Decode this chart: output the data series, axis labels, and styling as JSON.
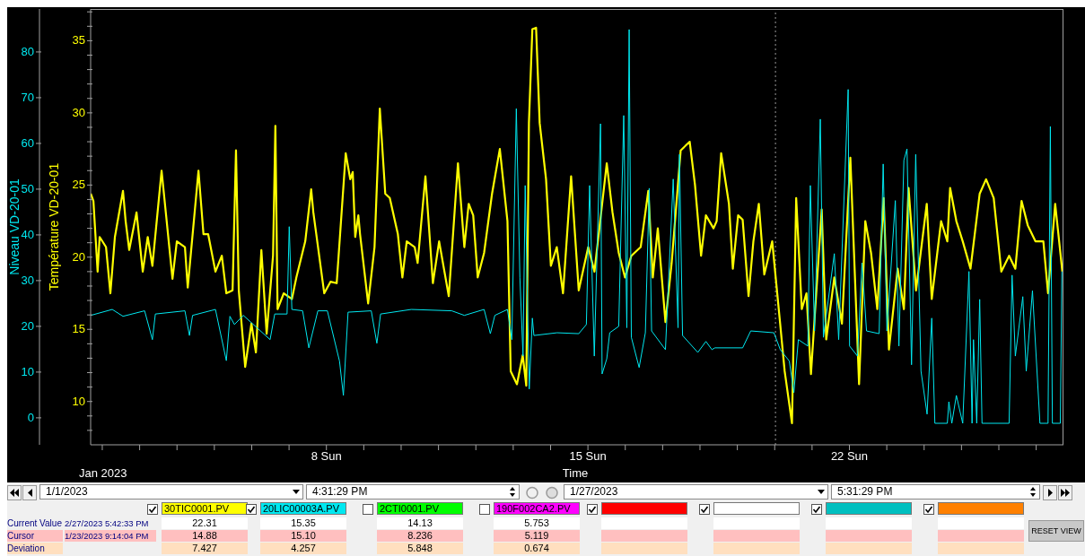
{
  "chart_data": {
    "type": "line",
    "xlabel": "Time",
    "ylabel": "Température VD-20-01",
    "y2label": "Niveau VD-20-01",
    "legend": "bottom",
    "xlim": [
      "2023-01-01T16:31",
      "2023-01-27T17:31"
    ],
    "xticks": [
      {
        "value": "2023-01-02",
        "label": null
      },
      {
        "value": "2023-01-03",
        "label": null
      },
      {
        "value": "2023-01-04",
        "label": null
      },
      {
        "value": "2023-01-05",
        "label": null
      },
      {
        "value": "2023-01-06",
        "label": null
      },
      {
        "value": "2023-01-07",
        "label": null
      },
      {
        "value": "2023-01-08",
        "label": "8 Sun"
      },
      {
        "value": "2023-01-09",
        "label": null
      },
      {
        "value": "2023-01-10",
        "label": null
      },
      {
        "value": "2023-01-11",
        "label": null
      },
      {
        "value": "2023-01-12",
        "label": null
      },
      {
        "value": "2023-01-13",
        "label": null
      },
      {
        "value": "2023-01-14",
        "label": null
      },
      {
        "value": "2023-01-15",
        "label": "15 Sun"
      },
      {
        "value": "2023-01-16",
        "label": null
      },
      {
        "value": "2023-01-17",
        "label": null
      },
      {
        "value": "2023-01-18",
        "label": null
      },
      {
        "value": "2023-01-19",
        "label": null
      },
      {
        "value": "2023-01-20",
        "label": null
      },
      {
        "value": "2023-01-21",
        "label": null
      },
      {
        "value": "2023-01-22",
        "label": "22 Sun"
      },
      {
        "value": "2023-01-23",
        "label": null
      },
      {
        "value": "2023-01-24",
        "label": null
      },
      {
        "value": "2023-01-25",
        "label": null
      },
      {
        "value": "2023-01-26",
        "label": null
      },
      {
        "value": "2023-01-27",
        "label": null
      }
    ],
    "ylim": [
      7,
      37.2
    ],
    "yticks": [
      {
        "value": 8,
        "label": null
      },
      {
        "value": 9,
        "label": null
      },
      10,
      {
        "value": 11,
        "label": null
      },
      {
        "value": 12,
        "label": null
      },
      {
        "value": 13,
        "label": null
      },
      {
        "value": 14,
        "label": null
      },
      15,
      {
        "value": 16,
        "label": null
      },
      {
        "value": 17,
        "label": null
      },
      {
        "value": 18,
        "label": null
      },
      {
        "value": 19,
        "label": null
      },
      20,
      {
        "value": 21,
        "label": null
      },
      {
        "value": 22,
        "label": null
      },
      {
        "value": 23,
        "label": null
      },
      {
        "value": 24,
        "label": null
      },
      25,
      {
        "value": 26,
        "label": null
      },
      {
        "value": 27,
        "label": null
      },
      {
        "value": 28,
        "label": null
      },
      {
        "value": 29,
        "label": null
      },
      30,
      {
        "value": 31,
        "label": null
      },
      {
        "value": 32,
        "label": null
      },
      {
        "value": 33,
        "label": null
      },
      {
        "value": 34,
        "label": null
      },
      35,
      {
        "value": 36,
        "label": null
      },
      {
        "value": 37,
        "label": null
      }
    ],
    "y2lim": [
      -5.9,
      89.4
    ],
    "y2ticks": [
      0,
      10,
      20,
      30,
      40,
      50,
      60,
      70,
      80
    ],
    "ref_lines": [
      {
        "axis": "x",
        "value": "2023-01-20T00:30",
        "label": null,
        "color": "#9a9a9a",
        "line_style": "dotted"
      }
    ],
    "series": [
      {
        "name": "30TIC0001.PV",
        "color": "#ffff00",
        "x": [
          "2023-01-01T16:35",
          "2023-01-01T18:18",
          "2023-01-01T21:00",
          "2023-01-01T22:18",
          "2023-01-02T02:24",
          "2023-01-02T05:12",
          "2023-01-02T08:06",
          "2023-01-02T13:18",
          "2023-01-02T15:00",
          "2023-01-02T17:18",
          "2023-01-02T22:00",
          "2023-01-03T02:00",
          "2023-01-03T05:12",
          "2023-01-03T08:12",
          "2023-01-03T14:06",
          "2023-01-03T17:00",
          "2023-01-03T21:06",
          "2023-01-03T23:54",
          "2023-01-04T05:06",
          "2023-01-04T06:54",
          "2023-01-04T13:48",
          "2023-01-04T17:00",
          "2023-01-04T20:00",
          "2023-01-05T00:42",
          "2023-01-05T04:48",
          "2023-01-05T07:42",
          "2023-01-05T11:42",
          "2023-01-05T13:54",
          "2023-01-05T15:42",
          "2023-01-05T19:48",
          "2023-01-05T23:48",
          "2023-01-06T02:42",
          "2023-01-06T06:12",
          "2023-01-06T09:36",
          "2023-01-06T13:42",
          "2023-01-06T15:12",
          "2023-01-06T16:36",
          "2023-01-06T20:36",
          "2023-01-07T01:48",
          "2023-01-07T04:42",
          "2023-01-07T10:24",
          "2023-01-07T14:12",
          "2023-01-07T15:36",
          "2023-01-07T22:36",
          "2023-01-08T02:36",
          "2023-01-08T06:36",
          "2023-01-08T12:24",
          "2023-01-08T15:18",
          "2023-01-08T16:54",
          "2023-01-08T18:30",
          "2023-01-08T20:30",
          "2023-01-08T21:36",
          "2023-01-09T02:48",
          "2023-01-09T06:54",
          "2023-01-09T10:18",
          "2023-01-09T13:48",
          "2023-01-09T16:42",
          "2023-01-09T21:54",
          "2023-01-10T00:48",
          "2023-01-10T03:36",
          "2023-01-10T08:42",
          "2023-01-10T10:36",
          "2023-01-10T15:36",
          "2023-01-10T20:24",
          "2023-01-11T00:24",
          "2023-01-11T06:36",
          "2023-01-11T12:30",
          "2023-01-11T16:36",
          "2023-01-11T19:24",
          "2023-01-11T22:18",
          "2023-01-12T01:12",
          "2023-01-12T05:18",
          "2023-01-12T10:24",
          "2023-01-12T15:24",
          "2023-01-12T20:18",
          "2023-01-12T22:24",
          "2023-01-13T02:24",
          "2023-01-13T06:06",
          "2023-01-13T08:24",
          "2023-01-13T10:06",
          "2023-01-13T12:18",
          "2023-01-13T14:42",
          "2023-01-13T17:00",
          "2023-01-13T21:06",
          "2023-01-14T00:12",
          "2023-01-14T04:00",
          "2023-01-14T08:00",
          "2023-01-14T13:12",
          "2023-01-14T18:06",
          "2023-01-15T00:12",
          "2023-01-15T04:12",
          "2023-01-15T12:06",
          "2023-01-15T15:48",
          "2023-01-15T19:48",
          "2023-01-15T23:48",
          "2023-01-16T03:54",
          "2023-01-16T09:54",
          "2023-01-16T14:48",
          "2023-01-16T17:42",
          "2023-01-16T20:54",
          "2023-01-17T01:48",
          "2023-01-17T05:48",
          "2023-01-17T11:36",
          "2023-01-17T17:24",
          "2023-01-17T20:48",
          "2023-01-18T00:42",
          "2023-01-18T03:48",
          "2023-01-18T08:42",
          "2023-01-18T10:42",
          "2023-01-18T13:36",
          "2023-01-18T18:36",
          "2023-01-18T21:06",
          "2023-01-19T00:30",
          "2023-01-19T03:24",
          "2023-01-19T07:12",
          "2023-01-19T10:18",
          "2023-01-19T13:48",
          "2023-01-19T17:18",
          "2023-01-19T22:24",
          "2023-01-20T03:30",
          "2023-01-20T06:24",
          "2023-01-20T11:06",
          "2023-01-20T13:48",
          "2023-01-20T17:24",
          "2023-01-20T20:24",
          "2023-01-20T23:18",
          "2023-01-21T06:12",
          "2023-01-21T09:06",
          "2023-01-21T14:18",
          "2023-01-21T19:12",
          "2023-01-22T00:36",
          "2023-01-22T06:12",
          "2023-01-22T10:12",
          "2023-01-22T13:54",
          "2023-01-22T17:54",
          "2023-01-22T22:00",
          "2023-01-23T01:24",
          "2023-01-23T07:00",
          "2023-01-23T11:00",
          "2023-01-23T14:00",
          "2023-01-23T18:48",
          "2023-01-24T01:42",
          "2023-01-24T04:54",
          "2023-01-24T10:54",
          "2023-01-24T14:54",
          "2023-01-24T16:42",
          "2023-01-24T20:42",
          "2023-01-25T00:48",
          "2023-01-25T05:48",
          "2023-01-25T11:42",
          "2023-01-25T15:48",
          "2023-01-25T20:42",
          "2023-01-26T01:36",
          "2023-01-26T06:36",
          "2023-01-26T10:36",
          "2023-01-26T14:36",
          "2023-01-26T18:36",
          "2023-01-26T23:30",
          "2023-01-27T04:36",
          "2023-01-27T07:36",
          "2023-01-27T12:12",
          "2023-01-27T16:48"
        ],
        "values": [
          24.4,
          23.9,
          19.0,
          21.4,
          20.7,
          17.5,
          21.4,
          24.6,
          22.5,
          20.5,
          23.1,
          19.0,
          21.4,
          19.4,
          26.0,
          22.9,
          18.5,
          21.1,
          20.7,
          17.9,
          26.0,
          21.6,
          21.6,
          19.0,
          20.1,
          17.5,
          17.7,
          27.4,
          17.7,
          12.4,
          15.4,
          13.4,
          20.5,
          14.7,
          20.1,
          29.1,
          16.4,
          17.5,
          17.1,
          18.6,
          21.1,
          24.7,
          23.1,
          17.5,
          18.3,
          18.2,
          27.2,
          25.4,
          25.9,
          21.4,
          22.9,
          21.6,
          16.8,
          20.7,
          30.3,
          24.4,
          24.1,
          21.6,
          18.6,
          21.1,
          20.7,
          19.6,
          25.6,
          18.2,
          21.1,
          17.3,
          26.5,
          20.7,
          23.7,
          22.9,
          18.6,
          20.3,
          24.4,
          27.5,
          22.5,
          12.1,
          11.2,
          13.2,
          11.1,
          29.3,
          35.8,
          35.9,
          29.3,
          25.4,
          19.4,
          20.7,
          17.5,
          25.6,
          17.7,
          20.7,
          19.0,
          26.5,
          23.1,
          20.3,
          18.6,
          20.1,
          20.7,
          24.6,
          18.6,
          22.0,
          15.5,
          19.6,
          27.4,
          28.0,
          25.0,
          20.1,
          22.9,
          22.0,
          22.5,
          27.2,
          23.7,
          19.2,
          22.9,
          22.6,
          17.3,
          21.1,
          23.7,
          18.8,
          21.1,
          15.4,
          12.1,
          8.5,
          24.1,
          16.4,
          17.5,
          11.9,
          23.3,
          14.3,
          18.6,
          15.4,
          26.9,
          11.2,
          22.5,
          20.3,
          16.4,
          24.1,
          13.6,
          19.2,
          16.4,
          24.8,
          17.7,
          23.7,
          17.1,
          22.5,
          21.1,
          24.8,
          22.5,
          21.1,
          19.2,
          24.4,
          25.4,
          24.1,
          19.0,
          20.1,
          19.2,
          23.9,
          22.2,
          21.1,
          21.1,
          17.5,
          23.7,
          19.0
        ]
      },
      {
        "name": "20LIC00003A.PV",
        "axis": "y2",
        "color": "#00e8f0",
        "x": [
          "2023-01-01T16:35",
          "2023-01-02T06:24",
          "2023-01-02T13:18",
          "2023-01-03T03:12",
          "2023-01-03T08:12",
          "2023-01-03T10:06",
          "2023-01-04T05:06",
          "2023-01-04T08:00",
          "2023-01-04T10:00",
          "2023-01-05T00:42",
          "2023-01-05T07:42",
          "2023-01-05T10:00",
          "2023-01-05T12:54",
          "2023-01-05T18:36",
          "2023-01-06T11:48",
          "2023-01-06T14:48",
          "2023-01-06T22:42",
          "2023-01-07T00:06",
          "2023-01-07T01:48",
          "2023-01-07T08:42",
          "2023-01-07T12:42",
          "2023-01-07T18:30",
          "2023-01-08T00:36",
          "2023-01-08T08:24",
          "2023-01-08T10:54",
          "2023-01-08T13:54",
          "2023-01-09T04:48",
          "2023-01-09T08:24",
          "2023-01-09T10:48",
          "2023-01-10T06:30",
          "2023-01-11T08:30",
          "2023-01-11T16:36",
          "2023-01-12T05:18",
          "2023-01-12T09:18",
          "2023-01-12T12:12",
          "2023-01-12T20:18",
          "2023-01-12T23:06",
          "2023-01-13T02:00",
          "2023-01-13T04:18",
          "2023-01-13T06:18",
          "2023-01-13T07:42",
          "2023-01-13T10:18",
          "2023-01-13T12:18",
          "2023-01-13T13:18",
          "2023-01-14T04:12",
          "2023-01-14T18:06",
          "2023-01-14T23:00",
          "2023-01-15T01:06",
          "2023-01-15T04:06",
          "2023-01-15T08:06",
          "2023-01-15T09:06",
          "2023-01-15T12:06",
          "2023-01-15T14:00",
          "2023-01-15T19:48",
          "2023-01-15T23:00",
          "2023-01-16T01:00",
          "2023-01-16T02:30",
          "2023-01-16T03:54",
          "2023-01-16T08:54",
          "2023-01-16T12:54",
          "2023-01-16T15:24",
          "2023-01-16T16:54",
          "2023-01-17T01:48",
          "2023-01-17T06:48",
          "2023-01-17T09:54",
          "2023-01-17T10:48",
          "2023-01-17T12:48",
          "2023-01-17T22:36",
          "2023-01-18T03:48",
          "2023-01-18T07:42",
          "2023-01-18T09:30",
          "2023-01-19T03:24",
          "2023-01-19T08:36",
          "2023-01-19T23:30",
          "2023-01-20T03:36",
          "2023-01-20T09:24",
          "2023-01-20T12:18",
          "2023-01-20T15:12",
          "2023-01-20T21:18",
          "2023-01-20T22:54",
          "2023-01-21T01:36",
          "2023-01-21T05:18",
          "2023-01-21T07:18",
          "2023-01-21T14:18",
          "2023-01-21T17:06",
          "2023-01-21T23:12",
          "2023-01-22T00:06",
          "2023-01-22T05:12",
          "2023-01-22T08:06",
          "2023-01-22T11:00",
          "2023-01-22T19:06",
          "2023-01-22T21:42",
          "2023-01-23T00:06",
          "2023-01-23T05:30",
          "2023-01-23T07:48",
          "2023-01-23T11:00",
          "2023-01-23T13:00",
          "2023-01-23T15:54",
          "2023-01-23T18:36",
          "2023-01-23T22:00",
          "2023-01-24T01:54",
          "2023-01-24T04:54",
          "2023-01-24T06:54",
          "2023-01-24T14:54",
          "2023-01-24T15:54",
          "2023-01-24T17:48",
          "2023-01-24T20:42",
          "2023-01-25T00:48",
          "2023-01-25T04:48",
          "2023-01-25T06:48",
          "2023-01-25T07:42",
          "2023-01-25T09:48",
          "2023-01-25T11:42",
          "2023-01-25T13:12",
          "2023-01-26T06:36",
          "2023-01-26T08:30",
          "2023-01-26T10:36",
          "2023-01-26T15:24",
          "2023-01-26T17:36",
          "2023-01-26T21:36",
          "2023-01-27T02:24",
          "2023-01-27T07:36",
          "2023-01-27T09:06",
          "2023-01-27T10:24",
          "2023-01-27T15:30",
          "2023-01-27T16:30"
        ],
        "values": [
          22.4,
          23.7,
          22.2,
          23.4,
          17.1,
          22.7,
          23.4,
          18.0,
          22.4,
          23.7,
          12.5,
          22.2,
          20.4,
          22.4,
          17.1,
          22.7,
          22.7,
          41.8,
          23.7,
          23.4,
          15.3,
          23.4,
          23.4,
          12.4,
          4.9,
          23.1,
          23.4,
          16.3,
          22.7,
          23.7,
          23.4,
          22.4,
          23.7,
          18.4,
          22.4,
          23.7,
          17.1,
          67.6,
          30.6,
          13.5,
          50.8,
          6.3,
          21.8,
          18.0,
          18.6,
          18.4,
          20.4,
          50.8,
          13.5,
          64.3,
          9.6,
          12.9,
          18.6,
          20.0,
          66.1,
          19.7,
          84.9,
          17.6,
          11.0,
          18.6,
          50.2,
          19.0,
          14.9,
          52.2,
          19.7,
          57.6,
          18.0,
          14.3,
          16.7,
          14.9,
          15.3,
          15.3,
          19.0,
          18.6,
          14.9,
          12.4,
          5.5,
          17.1,
          15.7,
          50.8,
          19.0,
          65.3,
          17.6,
          35.9,
          17.1,
          71.8,
          15.7,
          13.5,
          33.9,
          19.0,
          18.4,
          55.5,
          19.0,
          47.5,
          15.7,
          56.3,
          58.8,
          11.6,
          57.6,
          10.2,
          0.8,
          21.8,
          -1.2,
          -1.2,
          3.5,
          -1.2,
          4.9,
          -1.2,
          32.0,
          -1.2,
          17.1,
          -1.2,
          25.9,
          -1.2,
          -1.2,
          31.2,
          13.5,
          26.5,
          10.2,
          27.8,
          -1.2,
          -1.2,
          63.7,
          -1.2,
          -1.2,
          32.0
        ]
      }
    ],
    "annotations": [
      "Jan 2023",
      "1/1/2023",
      "4:31:29 PM",
      "1/27/2023",
      "5:31:29 PM",
      "2CTI0001.PV",
      "190F002CA2.PV",
      "Current Value",
      "2/27/2023 5:42:33 PM",
      "22.31",
      "15.35",
      "14.13",
      "5.753",
      "Cursor",
      "1/23/2023 9:14:04 PM",
      "14.88",
      "15.10",
      "8.236",
      "5.119",
      "Deviation",
      "7.427",
      "4.257",
      "5.848",
      "0.674",
      "RESET VIEW"
    ]
  }
}
